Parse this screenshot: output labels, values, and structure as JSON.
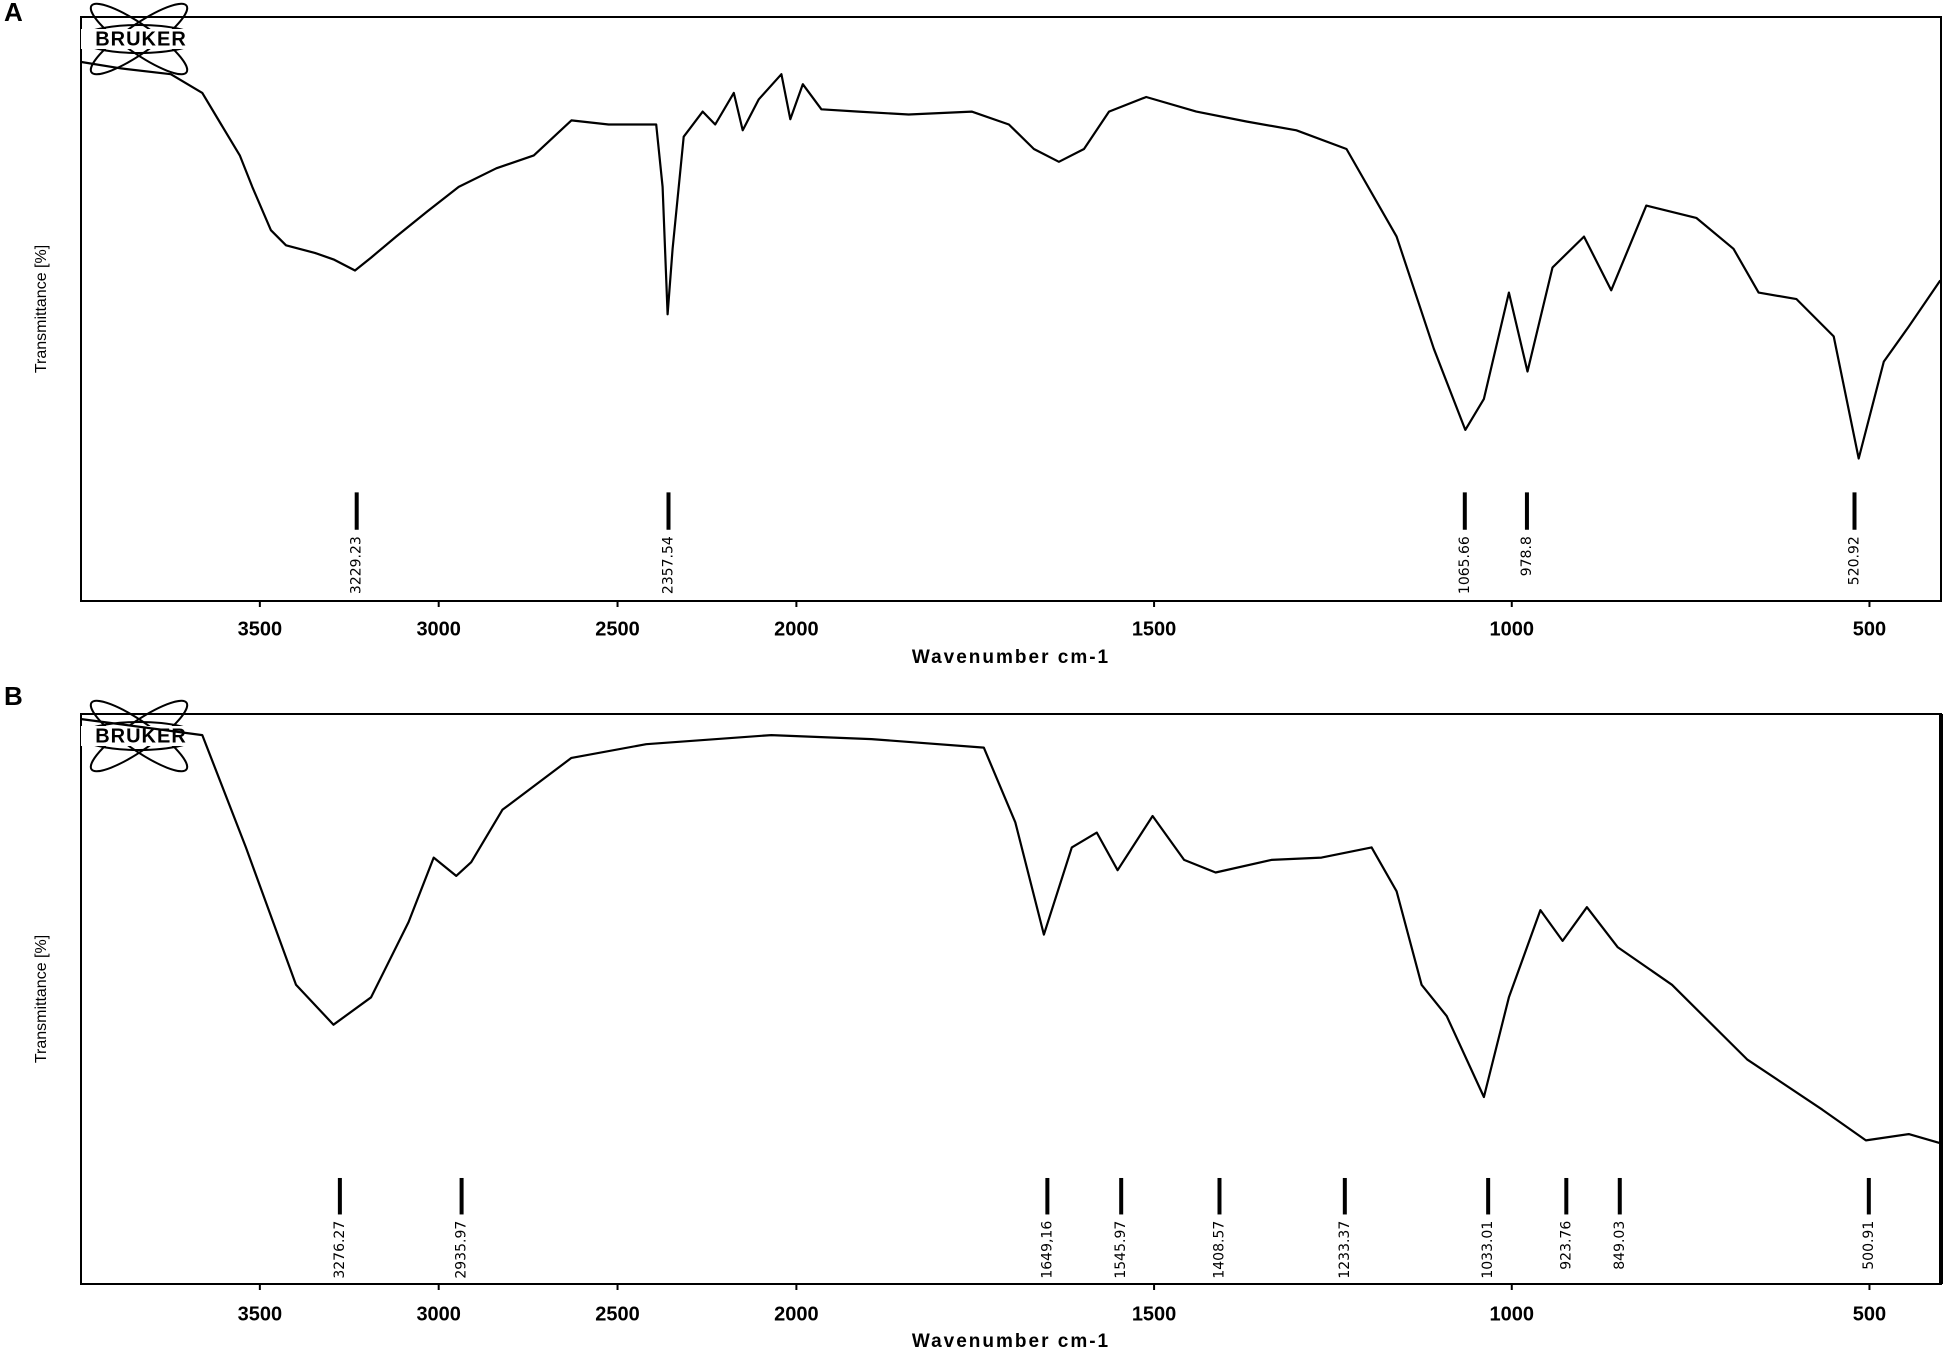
{
  "chart_data": [
    {
      "type": "line",
      "panel": "A",
      "logo": "BRUKER",
      "x_label": "Wavenumber cm-1",
      "y_label": "Transmittance [%]",
      "xlim": [
        4000,
        400
      ],
      "x_break": 2000,
      "xticks": [
        3500,
        3000,
        2500,
        2000,
        1500,
        1000,
        500
      ],
      "ylim": [
        0,
        100
      ],
      "color": "#000000",
      "x": [
        3999,
        3888,
        3749,
        3661,
        3608,
        3556,
        3521,
        3469,
        3427,
        3346,
        3294,
        3234,
        3189,
        3119,
        3032,
        2944,
        2839,
        2734,
        2629,
        2525,
        2437,
        2392,
        2374,
        2360,
        2346,
        2315,
        2262,
        2227,
        2175,
        2150,
        2105,
        2042,
        2017,
        1991,
        1965,
        1913,
        1843,
        1755,
        1703,
        1668,
        1633,
        1598,
        1563,
        1511,
        1441,
        1371,
        1301,
        1231,
        1161,
        1109,
        1065,
        1039,
        1004,
        978,
        943,
        899,
        861,
        812,
        742,
        690,
        655,
        602,
        550,
        515,
        480,
        445,
        401
      ],
      "values": [
        92.3,
        91.2,
        90.2,
        87.0,
        81.6,
        76.3,
        70.9,
        63.5,
        60.9,
        59.6,
        58.5,
        56.6,
        58.8,
        62.4,
        66.7,
        70.9,
        74.1,
        76.3,
        82.3,
        81.6,
        81.6,
        81.6,
        70.9,
        49.1,
        60.3,
        79.5,
        83.8,
        81.6,
        87.0,
        80.6,
        85.9,
        90.2,
        82.5,
        88.5,
        84.2,
        83.8,
        83.3,
        83.8,
        81.6,
        77.4,
        75.2,
        77.4,
        83.8,
        86.3,
        83.8,
        82.1,
        80.6,
        77.4,
        62.4,
        43.2,
        29.3,
        34.6,
        52.8,
        39.3,
        57.1,
        62.4,
        53.2,
        67.7,
        65.6,
        60.3,
        52.8,
        51.7,
        45.3,
        24.4,
        41.0,
        47.0,
        54.9
      ],
      "peaks": [
        3229.23,
        2357.54,
        1065.66,
        978.8,
        520.92
      ]
    },
    {
      "type": "line",
      "panel": "B",
      "logo": "BRUKER",
      "x_label": "Wavenumber cm-1",
      "y_label": "Transmittance [%]",
      "xlim": [
        4000,
        400
      ],
      "x_break": 2000,
      "xticks": [
        3500,
        3000,
        2500,
        2000,
        1500,
        1000,
        500
      ],
      "ylim": [
        0,
        100
      ],
      "color": "#000000",
      "x": [
        3999,
        3661,
        3539,
        3399,
        3294,
        3189,
        3084,
        3014,
        2951,
        2909,
        2822,
        2629,
        2420,
        2070,
        1895,
        1738,
        1694,
        1654,
        1615,
        1580,
        1551,
        1502,
        1458,
        1414,
        1336,
        1266,
        1196,
        1161,
        1126,
        1091,
        1039,
        1004,
        960,
        929,
        895,
        852,
        776,
        671,
        566,
        505,
        445,
        401
      ],
      "values": [
        99.1,
        96.3,
        76.6,
        52.5,
        45.5,
        50.3,
        63.5,
        74.8,
        71.6,
        74.0,
        83.2,
        92.3,
        94.7,
        96.3,
        95.6,
        94.1,
        81.0,
        61.3,
        76.6,
        79.2,
        72.6,
        82.1,
        74.4,
        72.2,
        74.4,
        74.8,
        76.6,
        68.9,
        52.5,
        47.0,
        32.8,
        50.3,
        65.6,
        60.2,
        66.1,
        59.1,
        52.5,
        39.4,
        30.6,
        25.2,
        26.3,
        24.7
      ],
      "peaks": [
        3276.27,
        2935.97,
        {
          "value": 1649.16,
          "label": "1649,16"
        },
        1545.97,
        1408.57,
        1233.37,
        1033.01,
        923.76,
        849.03,
        500.91
      ]
    }
  ]
}
